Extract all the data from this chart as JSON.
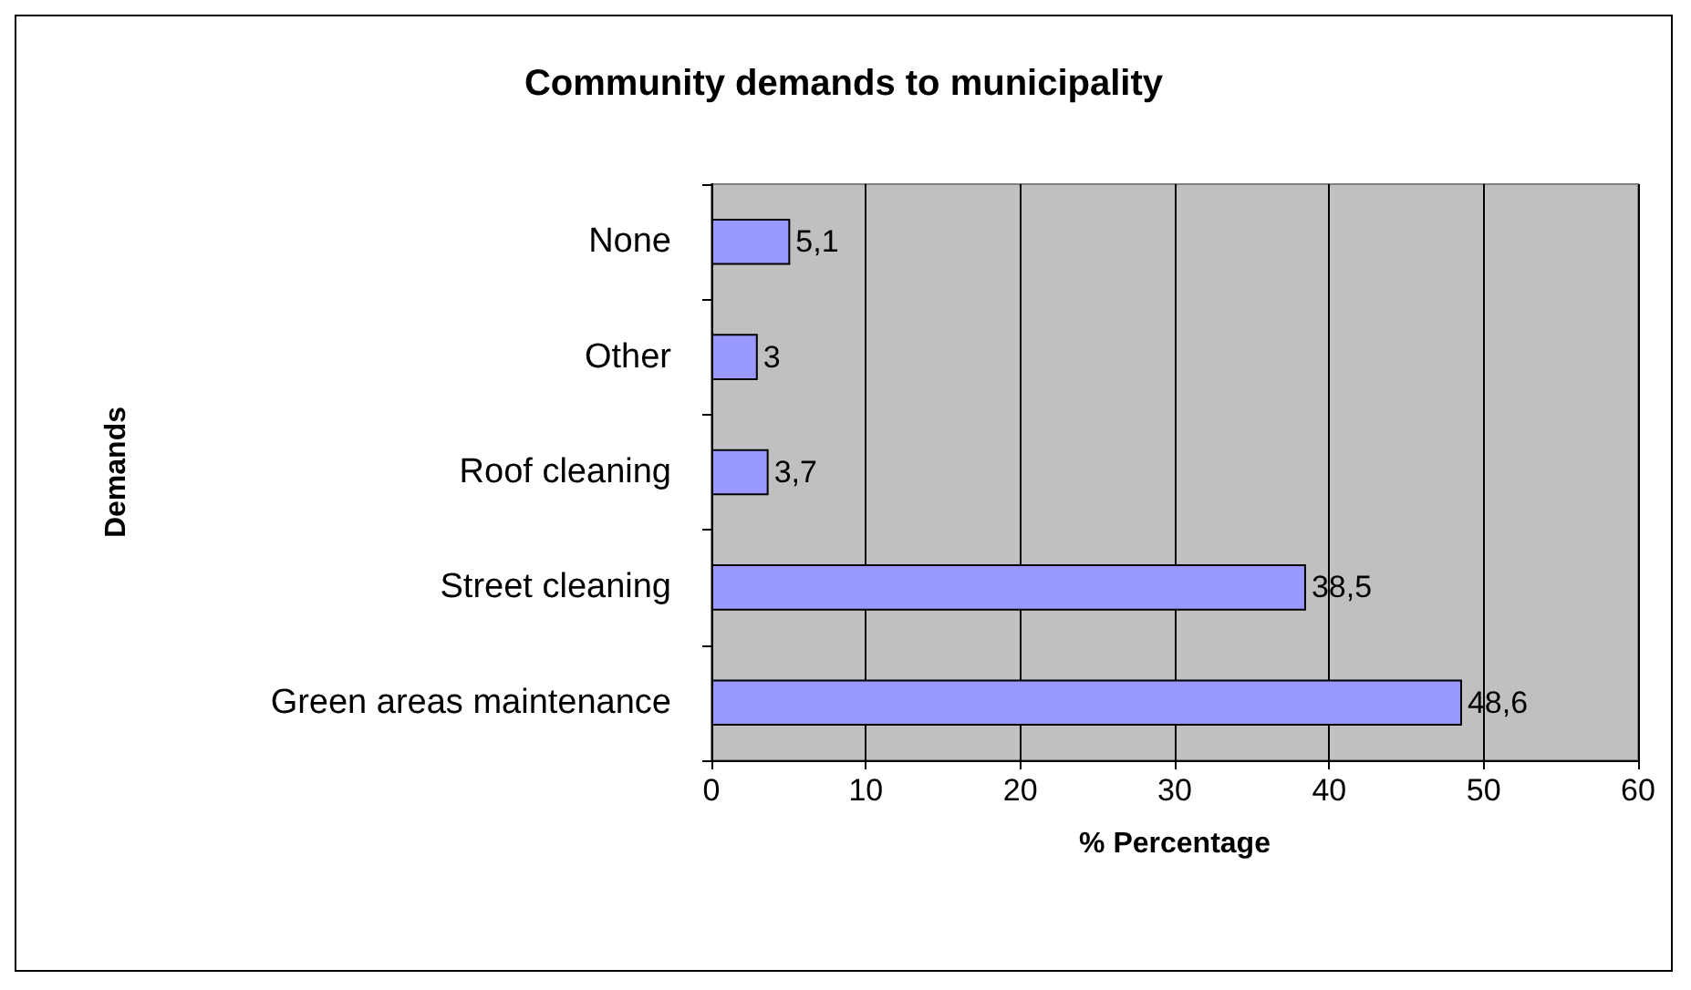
{
  "chart_data": {
    "type": "bar",
    "orientation": "horizontal",
    "title": "Community demands to municipality",
    "xlabel": "% Percentage",
    "ylabel": "Demands",
    "categories": [
      "None",
      "Other",
      "Roof cleaning",
      "Street cleaning",
      "Green areas maintenance"
    ],
    "values": [
      5.1,
      3,
      3.7,
      38.5,
      48.6
    ],
    "value_labels": [
      "5,1",
      "3",
      "3,7",
      "38,5",
      "48,6"
    ],
    "color": "#9999ff",
    "xlim": [
      0,
      60
    ],
    "xticks": [
      0,
      10,
      20,
      30,
      40,
      50,
      60
    ],
    "grid": "x"
  }
}
